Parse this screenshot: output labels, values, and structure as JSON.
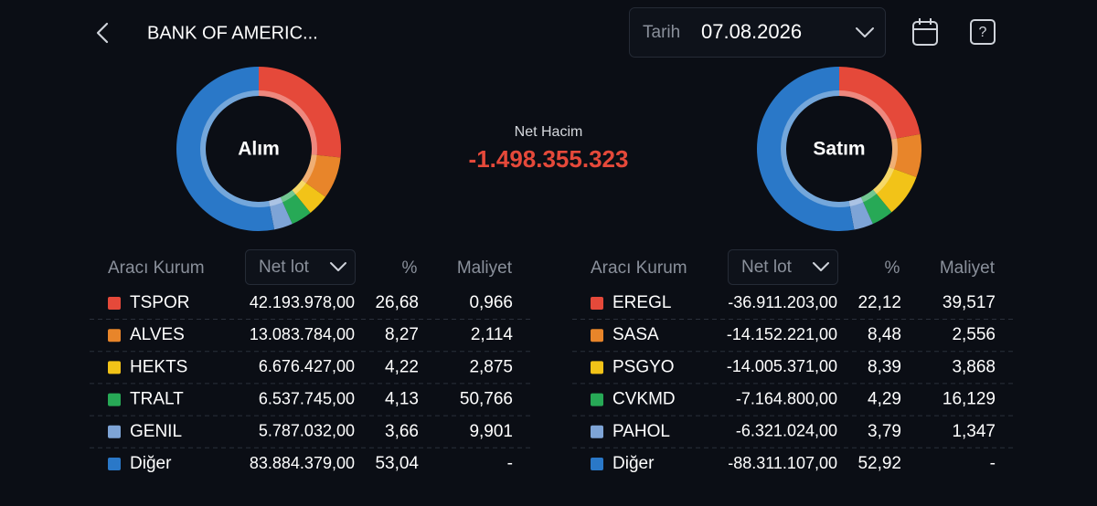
{
  "header": {
    "title": "BANK OF AMERIC...",
    "date_label": "Tarih",
    "date": "07.08.2026"
  },
  "summary": {
    "label": "Net Hacim",
    "value": "-1.498.355.323"
  },
  "panels": [
    {
      "donut_label": "Alım",
      "columns": [
        "Aracı Kurum",
        "Net lot",
        "%",
        "Maliyet"
      ],
      "rows": [
        {
          "name": "TSPOR",
          "color": "#e5493a",
          "net_lot": "42.193.978,00",
          "percent": {
            "value": 26.68,
            "label": "26,68"
          },
          "cost": "0,966"
        },
        {
          "name": "ALVES",
          "color": "#e8852a",
          "net_lot": "13.083.784,00",
          "percent": {
            "value": 8.27,
            "label": "8,27"
          },
          "cost": "2,114"
        },
        {
          "name": "HEKTS",
          "color": "#f2c318",
          "net_lot": "6.676.427,00",
          "percent": {
            "value": 4.22,
            "label": "4,22"
          },
          "cost": "2,875"
        },
        {
          "name": "TRALT",
          "color": "#27a956",
          "net_lot": "6.537.745,00",
          "percent": {
            "value": 4.13,
            "label": "4,13"
          },
          "cost": "50,766"
        },
        {
          "name": "GENIL",
          "color": "#7ea4d6",
          "net_lot": "5.787.032,00",
          "percent": {
            "value": 3.66,
            "label": "3,66"
          },
          "cost": "9,901"
        },
        {
          "name": "Diğer",
          "color": "#2a78c8",
          "net_lot": "83.884.379,00",
          "percent": {
            "value": 53.04,
            "label": "53,04"
          },
          "cost": "-"
        }
      ]
    },
    {
      "donut_label": "Satım",
      "columns": [
        "Aracı Kurum",
        "Net lot",
        "%",
        "Maliyet"
      ],
      "rows": [
        {
          "name": "EREGL",
          "color": "#e5493a",
          "net_lot": "-36.911.203,00",
          "percent": {
            "value": 22.12,
            "label": "22,12"
          },
          "cost": "39,517"
        },
        {
          "name": "SASA",
          "color": "#e8852a",
          "net_lot": "-14.152.221,00",
          "percent": {
            "value": 8.48,
            "label": "8,48"
          },
          "cost": "2,556"
        },
        {
          "name": "PSGYO",
          "color": "#f2c318",
          "net_lot": "-14.005.371,00",
          "percent": {
            "value": 8.39,
            "label": "8,39"
          },
          "cost": "3,868"
        },
        {
          "name": "CVKMD",
          "color": "#27a956",
          "net_lot": "-7.164.800,00",
          "percent": {
            "value": 4.29,
            "label": "4,29"
          },
          "cost": "16,129"
        },
        {
          "name": "PAHOL",
          "color": "#7ea4d6",
          "net_lot": "-6.321.024,00",
          "percent": {
            "value": 3.79,
            "label": "3,79"
          },
          "cost": "1,347"
        },
        {
          "name": "Diğer",
          "color": "#2a78c8",
          "net_lot": "-88.311.107,00",
          "percent": {
            "value": 52.92,
            "label": "52,92"
          },
          "cost": "-"
        }
      ]
    }
  ]
}
